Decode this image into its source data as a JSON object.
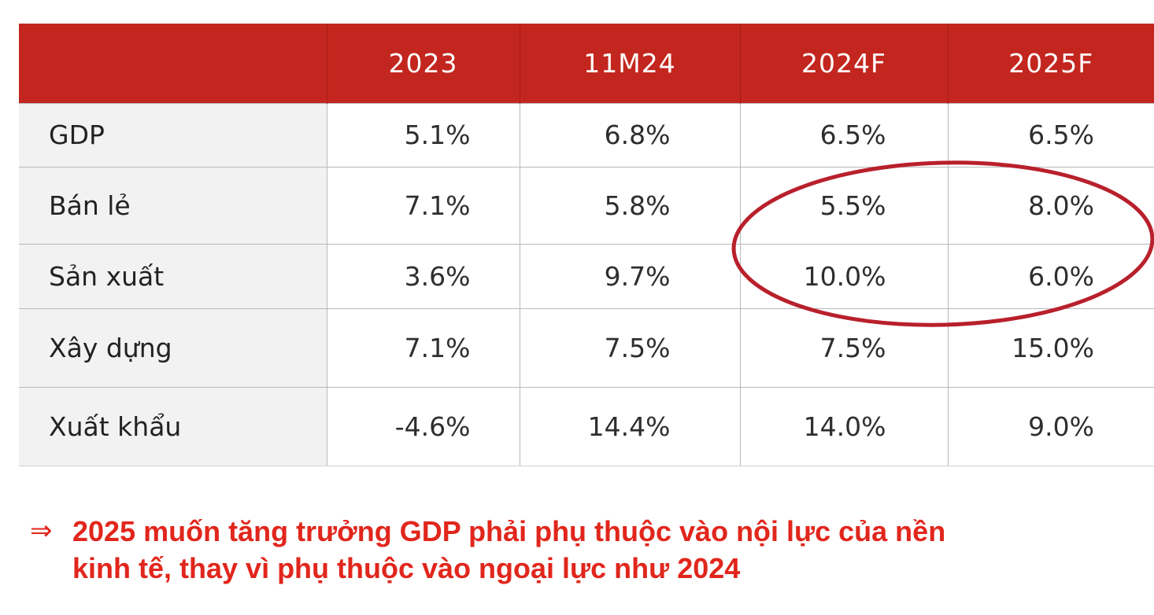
{
  "chart_data": {
    "type": "table",
    "columns": [
      "",
      "2023",
      "11M24",
      "2024F",
      "2025F"
    ],
    "rows": [
      {
        "label": "GDP",
        "values": [
          "5.1%",
          "6.8%",
          "6.5%",
          "6.5%"
        ]
      },
      {
        "label": "Bán lẻ",
        "values": [
          "7.1%",
          "5.8%",
          "5.5%",
          "8.0%"
        ]
      },
      {
        "label": "Sản xuất",
        "values": [
          "3.6%",
          "9.7%",
          "10.0%",
          "6.0%"
        ]
      },
      {
        "label": "Xây dựng",
        "values": [
          "7.1%",
          "7.5%",
          "7.5%",
          "15.0%"
        ]
      },
      {
        "label": "Xuất khẩu",
        "values": [
          "-4.6%",
          "14.4%",
          "14.0%",
          "9.0%"
        ]
      }
    ],
    "highlight": {
      "shape": "ellipse",
      "covers_rows": [
        "Bán lẻ",
        "Sản xuất"
      ],
      "covers_columns": [
        "2024F",
        "2025F"
      ]
    },
    "colors": {
      "header_background": "#c3261e",
      "header_text": "#ffffff",
      "label_background": "#f2f2f2",
      "highlight": "#b8202c",
      "conclusion_text": "#e1261c"
    }
  },
  "conclusion": {
    "arrow": "⇒",
    "line1": "2025 muốn tăng trưởng GDP phải phụ thuộc vào nội lực của nền",
    "line2": "kinh tế, thay vì phụ thuộc vào ngoại lực như 2024"
  }
}
